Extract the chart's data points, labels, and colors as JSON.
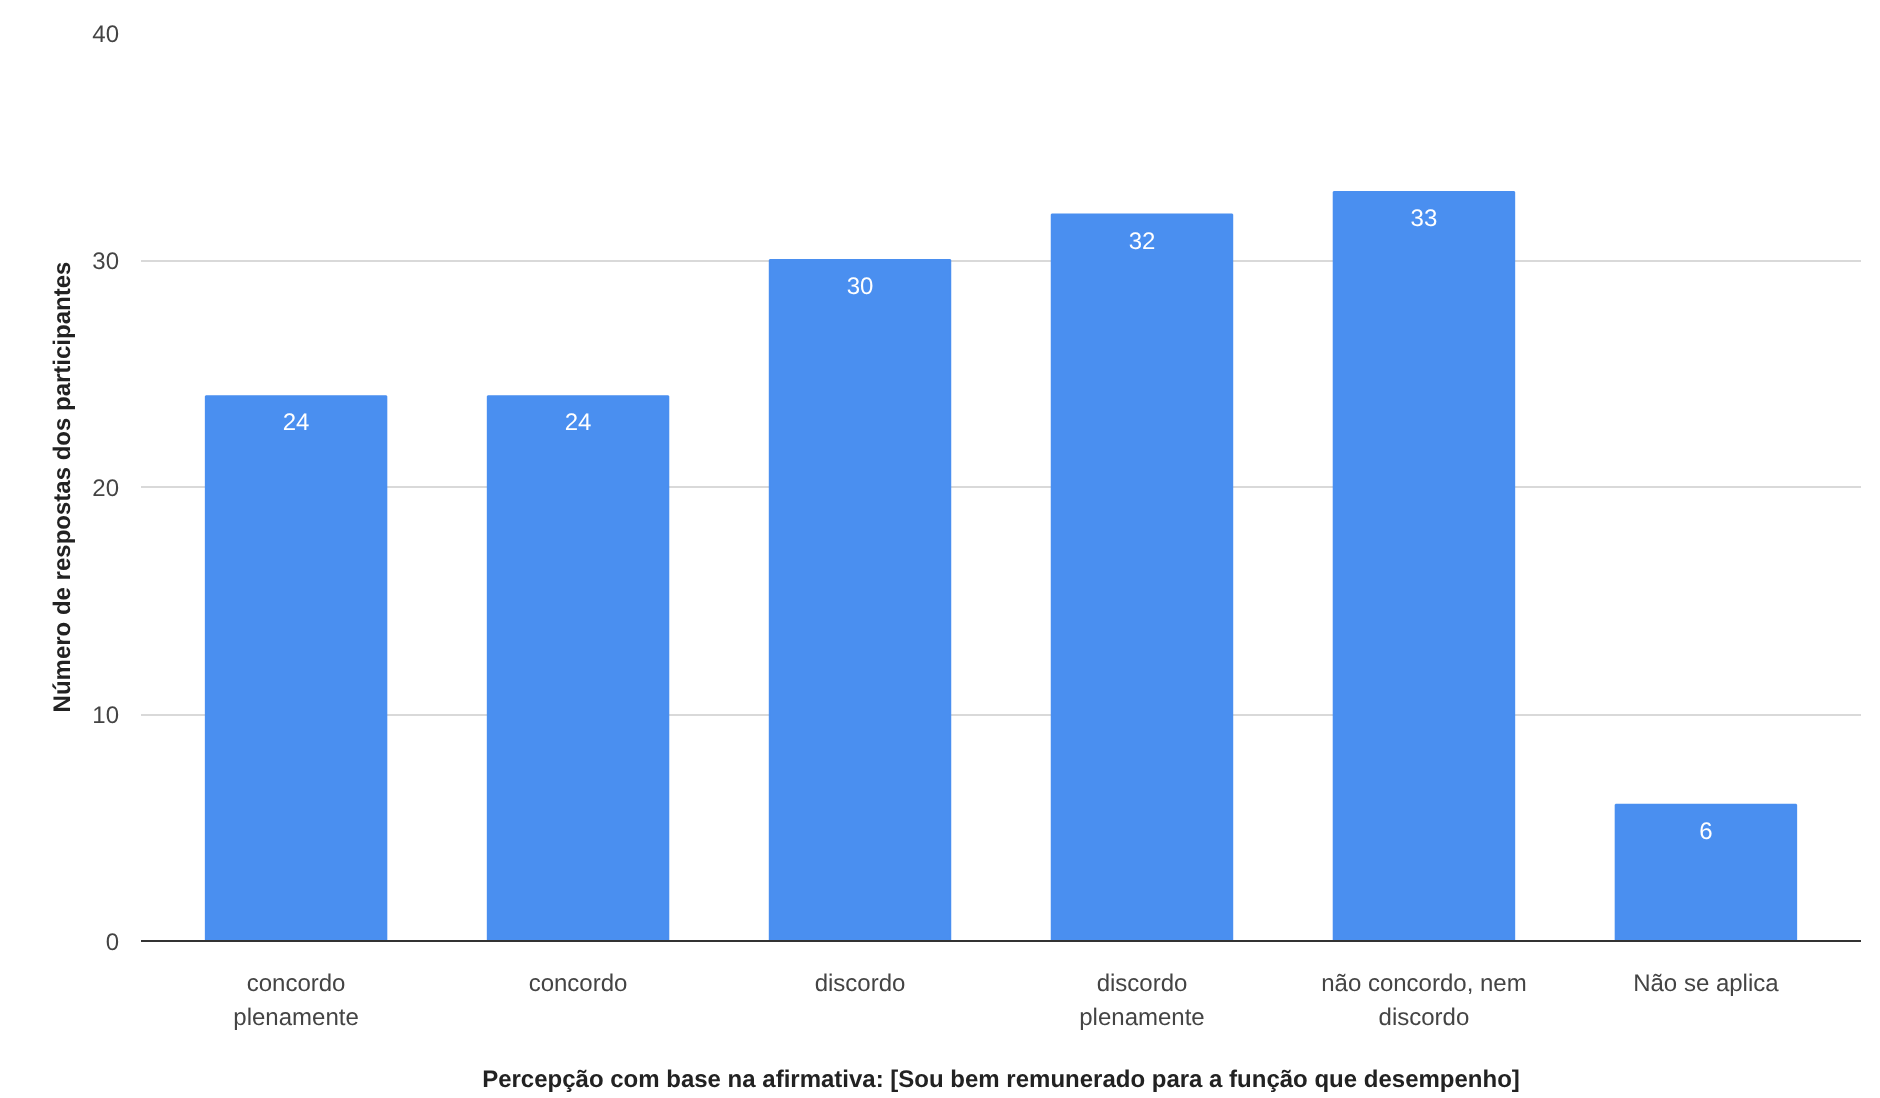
{
  "chart_data": {
    "type": "bar",
    "categories": [
      "concordo\nplenamente",
      "concordo",
      "discordo",
      "discordo\nplenamente",
      "não concordo, nem\ndiscordo",
      "Não se aplica"
    ],
    "values": [
      24,
      24,
      30,
      32,
      33,
      6
    ],
    "color": "#4a8ff0",
    "xlabel": "Percepção com base na afirmativa: [Sou bem remunerado para a função que desempenho]",
    "ylabel": "Número de respostas dos participantes",
    "ylim": [
      0,
      40
    ],
    "yticks": [
      0,
      10,
      20,
      30,
      40
    ],
    "grid": "y",
    "data_labels": true
  }
}
